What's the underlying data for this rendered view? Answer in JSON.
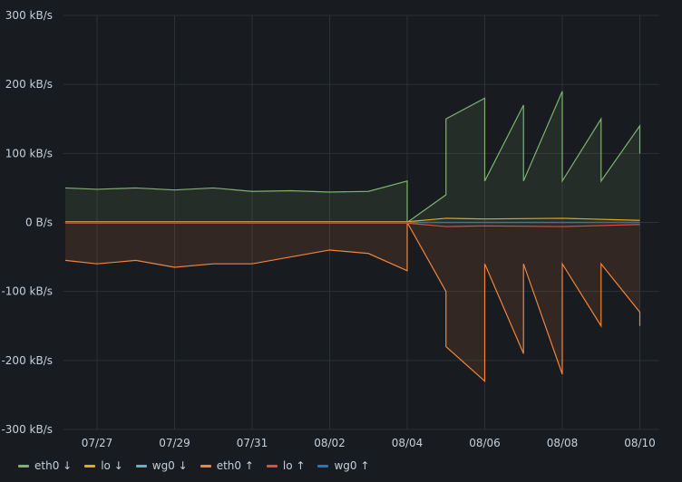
{
  "chart_data": {
    "type": "area",
    "y_unit": "B/s",
    "ylim": [
      -300000,
      300000
    ],
    "y_ticks": [
      {
        "value": 300000,
        "label": "300 kB/s"
      },
      {
        "value": 200000,
        "label": "200 kB/s"
      },
      {
        "value": 100000,
        "label": "100 kB/s"
      },
      {
        "value": 0,
        "label": "0 B/s"
      },
      {
        "value": -100000,
        "label": "-100 kB/s"
      },
      {
        "value": -200000,
        "label": "-200 kB/s"
      },
      {
        "value": -300000,
        "label": "-300 kB/s"
      }
    ],
    "x_ticks": [
      "07/27",
      "07/29",
      "07/31",
      "08/02",
      "08/04",
      "08/06",
      "08/08",
      "08/10"
    ],
    "grid": true,
    "legend_position": "bottom-left",
    "series": [
      {
        "name": "eth0 ↓",
        "color": "#7eb26d",
        "fill": true,
        "x": [
          "07/26",
          "07/27",
          "07/28",
          "07/29",
          "07/30",
          "07/31",
          "08/01",
          "08/02",
          "08/03",
          "08/04",
          "08/04",
          "08/05",
          "08/05",
          "08/06",
          "08/06",
          "08/07",
          "08/07",
          "08/08",
          "08/08",
          "08/09",
          "08/09",
          "08/10",
          "08/10"
        ],
        "y": [
          50000,
          48000,
          50000,
          47000,
          50000,
          45000,
          46000,
          44000,
          45000,
          60000,
          0,
          40000,
          150000,
          180000,
          60000,
          170000,
          60000,
          190000,
          60000,
          150000,
          60000,
          140000,
          100000
        ]
      },
      {
        "name": "lo ↓",
        "color": "#e5ac0e",
        "fill": false,
        "x": [
          "07/26",
          "08/04",
          "08/05",
          "08/06",
          "08/08",
          "08/10"
        ],
        "y": [
          1000,
          1000,
          6000,
          5000,
          6000,
          3000
        ]
      },
      {
        "name": "wg0 ↓",
        "color": "#64b0c8",
        "fill": false,
        "x": [
          "07/26",
          "08/10"
        ],
        "y": [
          0,
          0
        ]
      },
      {
        "name": "eth0 ↑",
        "color": "#ef843c",
        "fill": true,
        "x": [
          "07/26",
          "07/27",
          "07/28",
          "07/29",
          "07/30",
          "07/31",
          "08/01",
          "08/02",
          "08/03",
          "08/04",
          "08/04",
          "08/05",
          "08/05",
          "08/06",
          "08/06",
          "08/07",
          "08/07",
          "08/08",
          "08/08",
          "08/09",
          "08/09",
          "08/10",
          "08/10"
        ],
        "y": [
          -55000,
          -60000,
          -55000,
          -65000,
          -60000,
          -60000,
          -50000,
          -40000,
          -45000,
          -70000,
          0,
          -100000,
          -180000,
          -230000,
          -60000,
          -190000,
          -60000,
          -220000,
          -60000,
          -150000,
          -60000,
          -130000,
          -150000
        ]
      },
      {
        "name": "lo ↑",
        "color": "#e24d42",
        "fill": false,
        "x": [
          "07/26",
          "08/04",
          "08/05",
          "08/06",
          "08/08",
          "08/10"
        ],
        "y": [
          -1000,
          -1000,
          -6000,
          -5000,
          -6000,
          -3000
        ]
      },
      {
        "name": "wg0 ↑",
        "color": "#1f78c1",
        "fill": false,
        "x": [
          "07/26",
          "08/10"
        ],
        "y": [
          0,
          0
        ]
      }
    ]
  }
}
